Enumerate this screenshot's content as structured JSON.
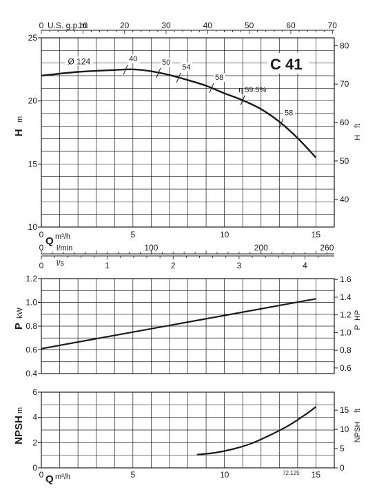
{
  "chart_data": [
    {
      "type": "line",
      "model": "C 41",
      "x_axis_label": "Q",
      "x_axis_unit": "m³/h",
      "xlim": [
        0,
        16
      ],
      "x_ticks": [
        0,
        5,
        10,
        15
      ],
      "ylabel": "H",
      "ylabel_unit": "m",
      "ylim": [
        10,
        25
      ],
      "y_ticks": [
        10,
        15,
        20,
        25
      ],
      "y2label": "H",
      "y2label_unit": "ft",
      "y2_ticks": [
        40,
        50,
        60,
        70,
        80
      ],
      "top_axis_label": "U.S. g.p.m.",
      "top_ticks": [
        0,
        10,
        20,
        30,
        40,
        50,
        60,
        70
      ],
      "grid": true,
      "impeller_label": "Ø 124",
      "efficiency_symbol": "η",
      "series": [
        {
          "x": [
            0,
            2,
            4,
            5,
            6,
            7,
            8,
            9,
            10,
            11,
            12,
            13,
            14,
            15
          ],
          "y": [
            22.0,
            22.3,
            22.45,
            22.5,
            22.35,
            22.05,
            21.65,
            21.2,
            20.6,
            20.05,
            19.35,
            18.35,
            17.05,
            15.5
          ]
        }
      ],
      "efficiency_marks": [
        {
          "label": "40",
          "x": 4.6
        },
        {
          "label": "50",
          "x": 6.4
        },
        {
          "label": "54",
          "x": 7.5
        },
        {
          "label": "58",
          "x": 9.3
        },
        {
          "label": "59.5%",
          "x": 11.0
        },
        {
          "label": "58",
          "x": 13.1
        }
      ]
    },
    {
      "type": "axis",
      "axes": [
        {
          "label": "l/min",
          "ticks": [
            0,
            100,
            200,
            260
          ]
        },
        {
          "label": "l/s",
          "ticks": [
            0,
            1,
            2,
            3,
            4
          ]
        }
      ]
    },
    {
      "type": "line",
      "ylabel": "P",
      "ylabel_unit": "kW",
      "ylim": [
        0.4,
        1.2
      ],
      "y_ticks": [
        "0.4",
        "0.6",
        "0.8",
        "1.0",
        "1.2"
      ],
      "y2label": "P",
      "y2label_unit": "HP",
      "y2_ticks": [
        "0.6",
        "0.8",
        "1.0",
        "1.2",
        "1.4",
        "1.6"
      ],
      "xlim": [
        0,
        16
      ],
      "grid": true,
      "series": [
        {
          "x": [
            0,
            15
          ],
          "y": [
            0.61,
            1.03
          ]
        }
      ]
    },
    {
      "type": "line",
      "x_axis_label": "Q",
      "x_axis_unit": "m³/h",
      "xlim": [
        0,
        16
      ],
      "x_ticks": [
        0,
        5,
        10,
        15
      ],
      "ylabel": "NPSH",
      "ylabel_unit": "m",
      "ylim": [
        0,
        6
      ],
      "y_ticks": [
        0,
        2,
        4,
        6
      ],
      "y2label": "NPSH",
      "y2label_unit": "ft",
      "y2_ticks": [
        0,
        5,
        10,
        15
      ],
      "grid": true,
      "drawing_code": "72.125",
      "series": [
        {
          "x": [
            8.5,
            9.5,
            10.5,
            11.5,
            12.5,
            13.5,
            14.5,
            15
          ],
          "y": [
            1.05,
            1.2,
            1.5,
            1.95,
            2.6,
            3.35,
            4.3,
            4.85
          ]
        }
      ]
    }
  ]
}
